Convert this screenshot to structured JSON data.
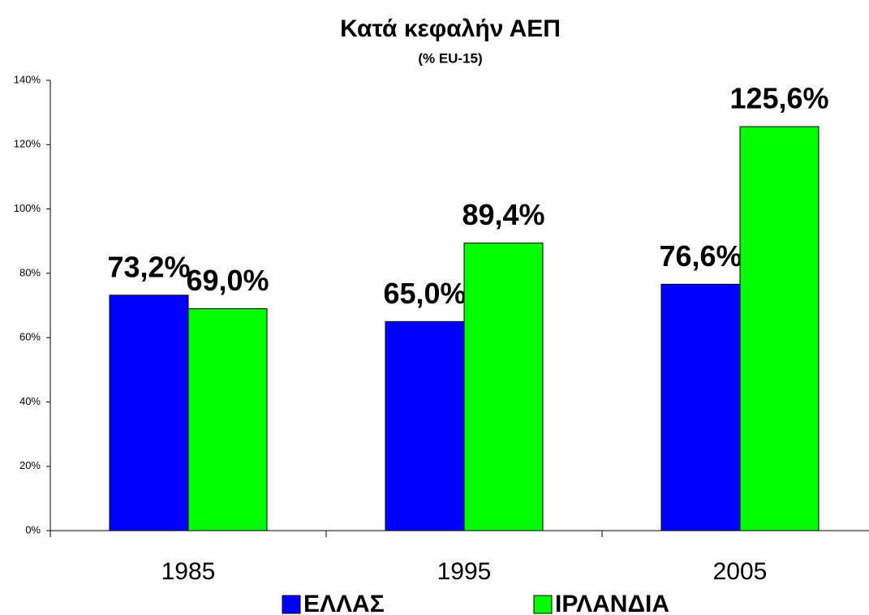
{
  "chart_data": {
    "type": "bar",
    "title": "Κατά κεφαλήν ΑΕΠ",
    "subtitle": "(% EU-15)",
    "categories": [
      "1985",
      "1995",
      "2005"
    ],
    "series": [
      {
        "name": "ΕΛΛΑΣ",
        "color": "#0000ff",
        "values": [
          73.2,
          65.0,
          76.6
        ],
        "value_labels": [
          "73,2%",
          "65,0%",
          "76,6%"
        ]
      },
      {
        "name": "ΙΡΛΑΝΔΙΑ",
        "color": "#00ff00",
        "values": [
          69.0,
          89.4,
          125.6
        ],
        "value_labels": [
          "69,0%",
          "89,4%",
          "125,6%"
        ]
      }
    ],
    "ylim": [
      0,
      140
    ],
    "yticks": [
      {
        "value": 0,
        "label": "0%"
      },
      {
        "value": 20,
        "label": "20%"
      },
      {
        "value": 40,
        "label": "40%"
      },
      {
        "value": 60,
        "label": "60%"
      },
      {
        "value": 80,
        "label": "80%"
      },
      {
        "value": 100,
        "label": "100%"
      },
      {
        "value": 120,
        "label": "120%"
      },
      {
        "value": 140,
        "label": "140%"
      }
    ],
    "legend": "bottom"
  }
}
